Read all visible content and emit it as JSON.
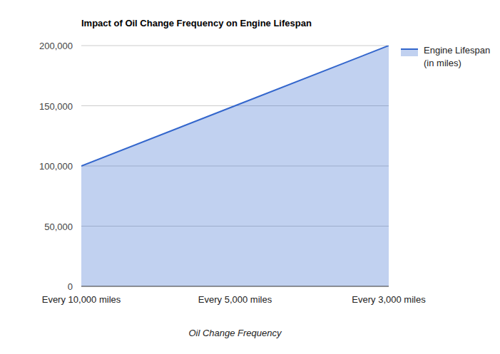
{
  "chart_data": {
    "type": "area",
    "title": "Impact of Oil Change Frequency on Engine Lifespan",
    "x_label": "Oil Change Frequency",
    "categories": [
      "Every 10,000 miles",
      "Every 5,000 miles",
      "Every 3,000 miles"
    ],
    "series": [
      {
        "name": "Engine Lifespan (in miles)",
        "color": "#3366cc",
        "values": [
          100000,
          150000,
          200000
        ]
      }
    ],
    "ylim": [
      0,
      200000
    ],
    "yticks": [
      0,
      {
        "value": 50000,
        "label": "50,000"
      },
      {
        "value": 100000,
        "label": "100,000"
      },
      {
        "value": 150000,
        "label": "150,000"
      },
      {
        "value": 200000,
        "label": "200,000"
      }
    ],
    "grid": true,
    "legend": "right"
  }
}
